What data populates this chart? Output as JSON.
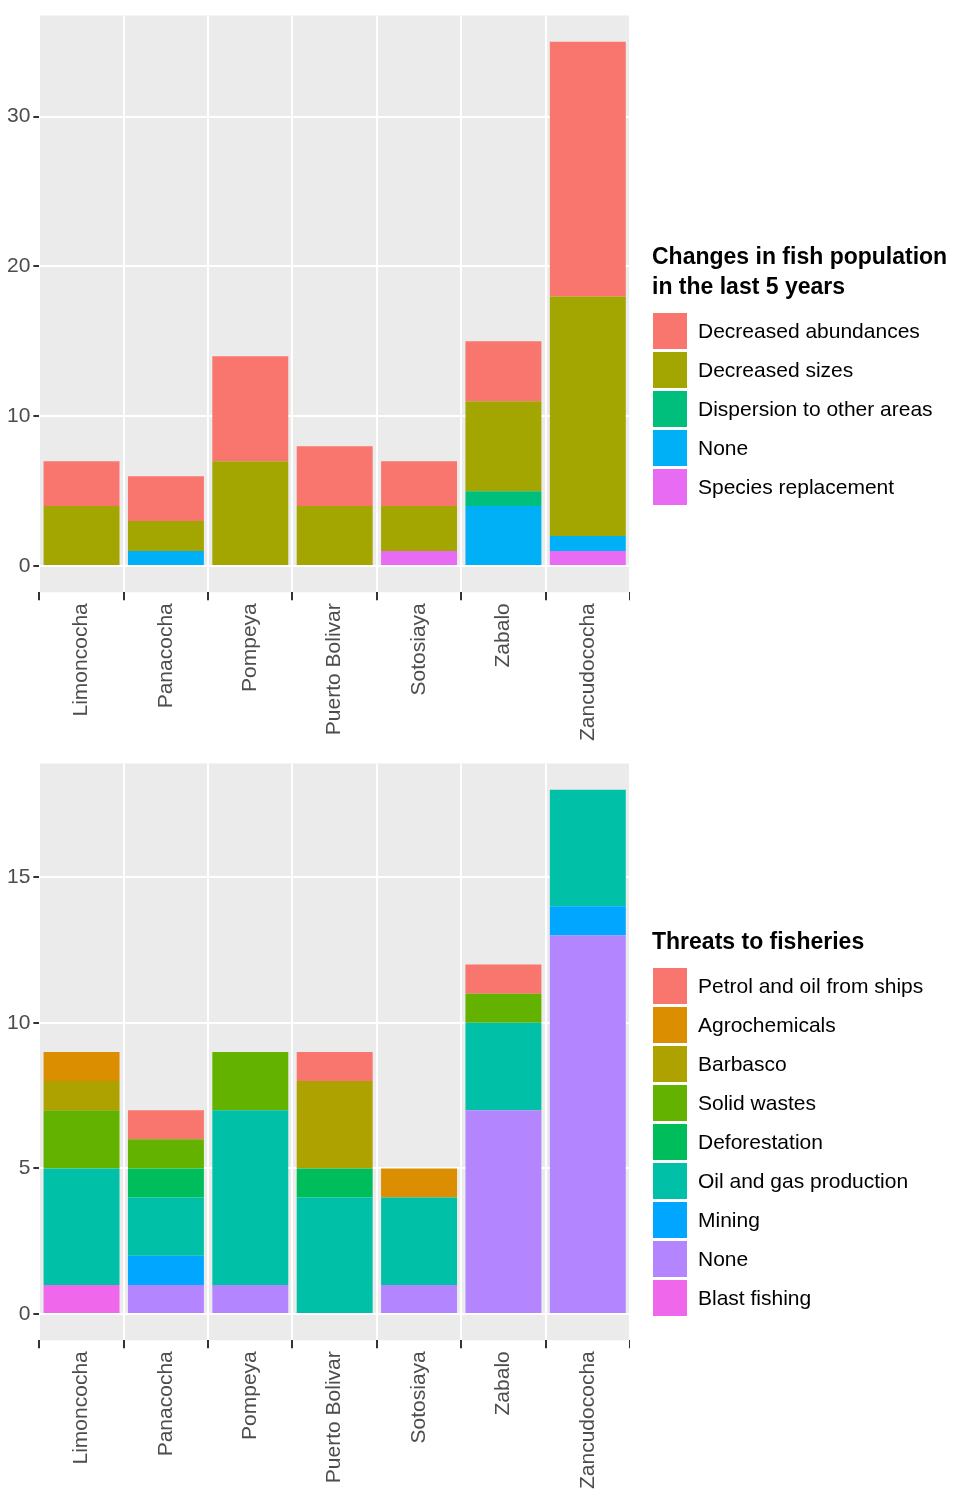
{
  "chart_data": [
    {
      "type": "bar",
      "stacked": true,
      "legend_title": "Changes in fish population\nin the last 5 years",
      "legend": "right",
      "grid": true,
      "categories": [
        "Limoncocha",
        "Panacocha",
        "Pompeya",
        "Puerto Bolivar",
        "Sotosiaya",
        "Zabalo",
        "Zancudococha"
      ],
      "ylim": [
        -1.75,
        36.75
      ],
      "yticks": [
        0,
        10,
        20,
        30
      ],
      "series": [
        {
          "name": "Species replacement",
          "color": "#e76bf3",
          "values": [
            0,
            0,
            0,
            0,
            1,
            0,
            1
          ]
        },
        {
          "name": "None",
          "color": "#00b0f6",
          "values": [
            0,
            1,
            0,
            0,
            0,
            4,
            1
          ]
        },
        {
          "name": "Dispersion to other areas",
          "color": "#00bf7d",
          "values": [
            0,
            0,
            0,
            0,
            0,
            1,
            0
          ]
        },
        {
          "name": "Decreased sizes",
          "color": "#a3a500",
          "values": [
            4,
            2,
            7,
            4,
            3,
            6,
            16
          ]
        },
        {
          "name": "Decreased abundances",
          "color": "#f8766d",
          "values": [
            3,
            3,
            7,
            4,
            3,
            4,
            17
          ]
        }
      ]
    },
    {
      "type": "bar",
      "stacked": true,
      "legend_title": "Threats to fisheries",
      "legend": "right",
      "grid": true,
      "categories": [
        "Limoncocha",
        "Panacocha",
        "Pompeya",
        "Puerto Bolivar",
        "Sotosiaya",
        "Zabalo",
        "Zancudococha"
      ],
      "ylim": [
        -0.9,
        18.9
      ],
      "yticks": [
        0,
        5,
        10,
        15
      ],
      "series": [
        {
          "name": "Blast fishing",
          "color": "#ef67eb",
          "values": [
            1,
            0,
            0,
            0,
            0,
            0,
            0
          ]
        },
        {
          "name": "None",
          "color": "#b385ff",
          "values": [
            0,
            1,
            1,
            0,
            1,
            7,
            13
          ]
        },
        {
          "name": "Mining",
          "color": "#00a6ff",
          "values": [
            0,
            1,
            0,
            0,
            0,
            0,
            1
          ]
        },
        {
          "name": "Oil and gas production",
          "color": "#00c1a7",
          "values": [
            4,
            2,
            6,
            4,
            3,
            3,
            4
          ]
        },
        {
          "name": "Deforestation",
          "color": "#00bd5c",
          "values": [
            0,
            1,
            0,
            1,
            0,
            0,
            0
          ]
        },
        {
          "name": "Solid wastes",
          "color": "#64b200",
          "values": [
            2,
            1,
            2,
            0,
            0,
            1,
            0
          ]
        },
        {
          "name": "Barbasco",
          "color": "#aea200",
          "values": [
            1,
            0,
            0,
            3,
            0,
            0,
            0
          ]
        },
        {
          "name": "Agrochemicals",
          "color": "#db8e00",
          "values": [
            1,
            0,
            0,
            0,
            1,
            0,
            0
          ]
        },
        {
          "name": "Petrol and oil from ships",
          "color": "#f8766d",
          "values": [
            0,
            1,
            0,
            1,
            0,
            1,
            0
          ]
        }
      ]
    }
  ]
}
